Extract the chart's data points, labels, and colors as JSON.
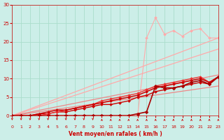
{
  "background_color": "#cceee8",
  "grid_color": "#aaddcc",
  "xlabel": "Vent moyen/en rafales ( km/h )",
  "xlabel_color": "#cc0000",
  "xlim": [
    0,
    23
  ],
  "ylim": [
    0,
    30
  ],
  "xticks": [
    0,
    1,
    2,
    3,
    4,
    5,
    6,
    7,
    8,
    9,
    10,
    11,
    12,
    13,
    14,
    15,
    16,
    17,
    18,
    19,
    20,
    21,
    22,
    23
  ],
  "yticks": [
    0,
    5,
    10,
    15,
    20,
    25,
    30
  ],
  "series": [
    {
      "x": [
        0,
        23
      ],
      "y": [
        0,
        21
      ],
      "color": "#ffaaaa",
      "lw": 0.9,
      "marker": null,
      "ms": 0,
      "zorder": 2
    },
    {
      "x": [
        0,
        23
      ],
      "y": [
        0,
        18
      ],
      "color": "#ffaaaa",
      "lw": 0.9,
      "marker": null,
      "ms": 0,
      "zorder": 2
    },
    {
      "x": [
        0,
        1,
        2,
        3,
        4,
        5,
        6,
        7,
        8,
        9,
        10,
        11,
        12,
        13,
        14,
        15,
        16,
        17,
        18,
        19,
        20,
        21,
        22,
        23
      ],
      "y": [
        0,
        0,
        0,
        0,
        0,
        0,
        0,
        0,
        0,
        0,
        0,
        0,
        0,
        0,
        0,
        21,
        26.5,
        22,
        23,
        21.5,
        23,
        23.5,
        21,
        21
      ],
      "color": "#ffaaaa",
      "lw": 0.8,
      "marker": "D",
      "ms": 2.0,
      "zorder": 2
    },
    {
      "x": [
        0,
        23
      ],
      "y": [
        0,
        11
      ],
      "color": "#ee8888",
      "lw": 0.9,
      "marker": null,
      "ms": 0,
      "zorder": 3
    },
    {
      "x": [
        0,
        23
      ],
      "y": [
        0,
        8
      ],
      "color": "#ee8888",
      "lw": 0.9,
      "marker": null,
      "ms": 0,
      "zorder": 3
    },
    {
      "x": [
        0,
        1,
        2,
        3,
        4,
        5,
        6,
        7,
        8,
        9,
        10,
        11,
        12,
        13,
        14,
        15,
        16,
        17,
        18,
        19,
        20,
        21,
        22,
        23
      ],
      "y": [
        0,
        0,
        0,
        0,
        0.5,
        1,
        1.5,
        2,
        2.5,
        3,
        4,
        4.5,
        5,
        5.5,
        6,
        7,
        8,
        8.5,
        9,
        9.5,
        10,
        10.5,
        9,
        10.5
      ],
      "color": "#ee3333",
      "lw": 1.0,
      "marker": "D",
      "ms": 2.0,
      "zorder": 4
    },
    {
      "x": [
        0,
        1,
        2,
        3,
        4,
        5,
        6,
        7,
        8,
        9,
        10,
        11,
        12,
        13,
        14,
        15,
        16,
        17,
        18,
        19,
        20,
        21,
        22,
        23
      ],
      "y": [
        0,
        0,
        0,
        0.5,
        1,
        1.5,
        1.5,
        2,
        2.5,
        3,
        3.5,
        4,
        4.5,
        5,
        5.5,
        6.5,
        7.5,
        8,
        8.5,
        9,
        9.5,
        10,
        9,
        10.5
      ],
      "color": "#cc0000",
      "lw": 1.1,
      "marker": "D",
      "ms": 2.0,
      "zorder": 4
    },
    {
      "x": [
        0,
        1,
        2,
        3,
        4,
        5,
        6,
        7,
        8,
        9,
        10,
        11,
        12,
        13,
        14,
        15,
        16,
        17,
        18,
        19,
        20,
        21,
        22,
        23
      ],
      "y": [
        0,
        0,
        0,
        0.5,
        0.5,
        1,
        1,
        1.5,
        2,
        2.5,
        3,
        3,
        3.5,
        4,
        5,
        5.5,
        6.5,
        7,
        7.5,
        8,
        8.5,
        9,
        8.5,
        10.5
      ],
      "color": "#cc0000",
      "lw": 1.0,
      "marker": "D",
      "ms": 2.0,
      "zorder": 3
    },
    {
      "x": [
        0,
        1,
        2,
        3,
        4,
        5,
        6,
        7,
        8,
        9,
        10,
        11,
        12,
        13,
        14,
        15,
        16,
        17,
        18,
        19,
        20,
        21,
        22,
        23
      ],
      "y": [
        0,
        0,
        0,
        0,
        0,
        0,
        0,
        0,
        0,
        0,
        0,
        0,
        0,
        0,
        0.5,
        1,
        8,
        7.5,
        7.5,
        8,
        9,
        9.5,
        8.5,
        10.5
      ],
      "color": "#aa0000",
      "lw": 1.2,
      "marker": "D",
      "ms": 2.5,
      "zorder": 5
    }
  ],
  "arrow_up_positions": [
    10,
    11,
    12,
    13,
    14,
    15,
    16,
    17,
    18,
    19,
    20,
    21,
    22,
    23
  ],
  "arrow_down_positions": [
    0,
    1,
    2,
    3,
    4,
    5,
    6,
    7,
    8,
    9
  ],
  "arrow_color": "#cc0000"
}
